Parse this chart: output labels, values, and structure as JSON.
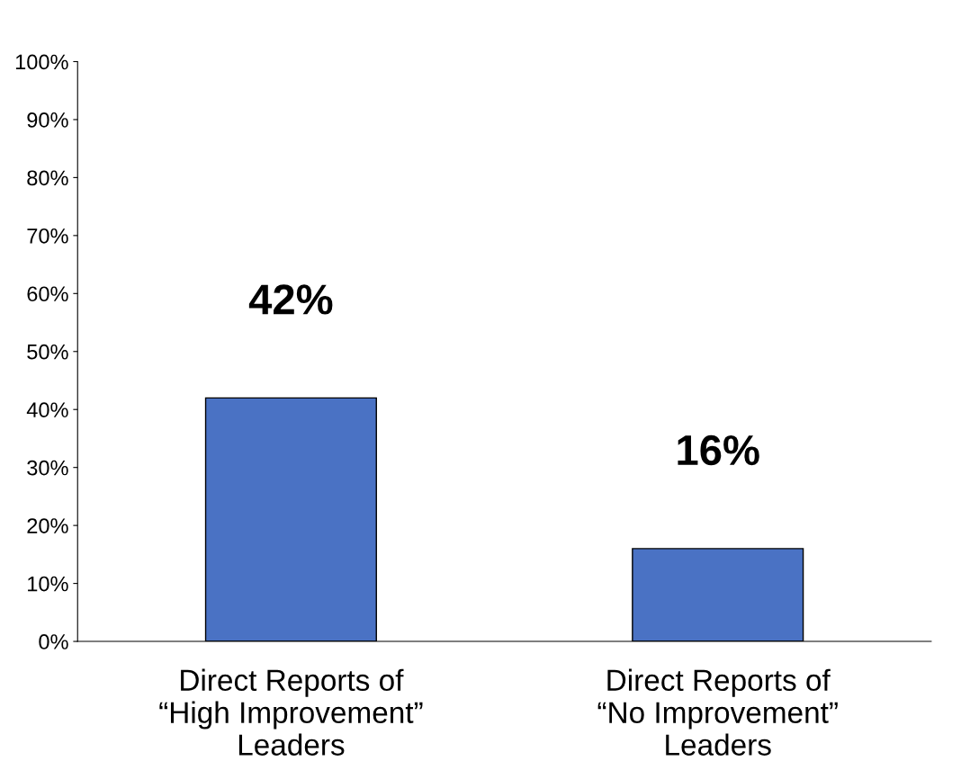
{
  "chart_data": {
    "type": "bar",
    "categories": [
      "Direct Reports of\n“High Improvement”\nLeaders",
      "Direct Reports of\n“No Improvement”\nLeaders"
    ],
    "values": [
      42,
      16
    ],
    "color": "#4a72c4",
    "value_labels": [
      "42%",
      "16%"
    ],
    "ylim": [
      0,
      100
    ],
    "yticks": [
      {
        "value": 0,
        "label": "0%"
      },
      {
        "value": 10,
        "label": "10%"
      },
      {
        "value": 20,
        "label": "20%"
      },
      {
        "value": 30,
        "label": "30%"
      },
      {
        "value": 40,
        "label": "40%"
      },
      {
        "value": 50,
        "label": "50%"
      },
      {
        "value": 60,
        "label": "60%"
      },
      {
        "value": 70,
        "label": "70%"
      },
      {
        "value": 80,
        "label": "80%"
      },
      {
        "value": 90,
        "label": "90%"
      },
      {
        "value": 100,
        "label": "100%"
      }
    ],
    "grid": false,
    "legend": false
  }
}
